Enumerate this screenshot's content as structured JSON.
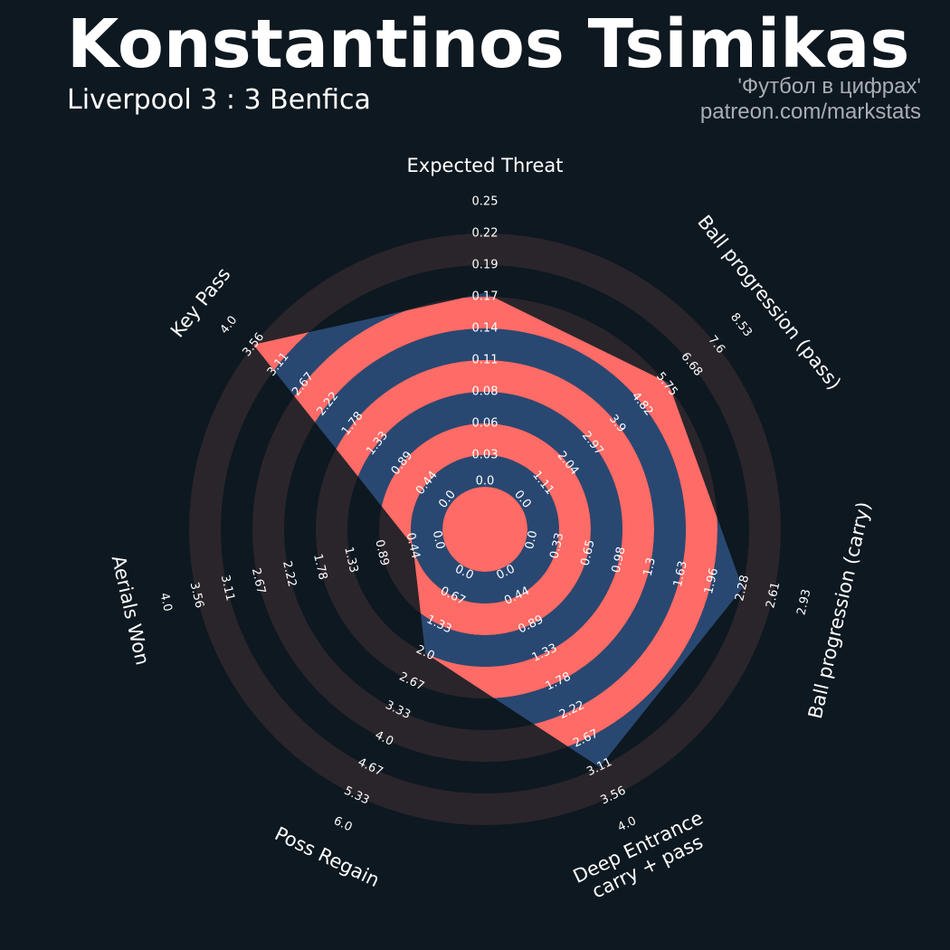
{
  "header": {
    "player": "Konstantinos Tsimikas",
    "match": "Liverpool 3 : 3 Benfica",
    "credit_line1": "'Футбол в цифрах'",
    "credit_line2": "patreon.com/markstats"
  },
  "colors": {
    "background": "#0e1820",
    "ring_dark": "#2a252b",
    "ring_red": "#ff6b66",
    "ring_blue": "#284872",
    "text": "#ffffff"
  },
  "chart_data": {
    "type": "radar",
    "title": "Konstantinos Tsimikas",
    "subtitle": "Liverpool 3 : 3 Benfica",
    "axes": [
      {
        "label": "Expected Threat",
        "min": 0.0,
        "max": 0.25,
        "value": 0.17,
        "ticks": [
          "0.0",
          "0.03",
          "0.06",
          "0.08",
          "0.11",
          "0.14",
          "0.17",
          "0.19",
          "0.22",
          "0.25"
        ]
      },
      {
        "label": "Ball progression (pass)",
        "min": 0.0,
        "max": 8.53,
        "value": 5.75,
        "ticks": [
          "0.0",
          "1.11",
          "2.04",
          "2.97",
          "3.9",
          "4.82",
          "5.75",
          "6.68",
          "7.6",
          "8.53"
        ]
      },
      {
        "label": "Ball progression (carry)",
        "min": 0.0,
        "max": 2.93,
        "value": 2.28,
        "ticks": [
          "0.0",
          "0.33",
          "0.65",
          "0.98",
          "1.3",
          "1.63",
          "1.96",
          "2.28",
          "2.61",
          "2.93"
        ]
      },
      {
        "label": "Deep Entrance\ncarry + pass",
        "min": 0.0,
        "max": 4.0,
        "value": 3.11,
        "ticks": [
          "0.0",
          "0.44",
          "0.89",
          "1.33",
          "1.78",
          "2.22",
          "2.67",
          "3.11",
          "3.56",
          "4.0"
        ]
      },
      {
        "label": "Poss Regain",
        "min": 0.0,
        "max": 6.0,
        "value": 2.0,
        "ticks": [
          "0.0",
          "0.67",
          "1.33",
          "2.0",
          "2.67",
          "3.33",
          "4.0",
          "4.67",
          "5.33",
          "6.0"
        ]
      },
      {
        "label": "Aerials Won",
        "min": 0.0,
        "max": 4.0,
        "value": 0.44,
        "ticks": [
          "0.0",
          "0.44",
          "0.89",
          "1.33",
          "1.78",
          "2.22",
          "2.67",
          "3.11",
          "3.56",
          "4.0"
        ]
      },
      {
        "label": "Key Pass",
        "min": 0.0,
        "max": 4.0,
        "value": 3.56,
        "ticks": [
          "0.0",
          "0.44",
          "0.89",
          "1.33",
          "1.78",
          "2.22",
          "2.67",
          "3.11",
          "3.56",
          "4.0"
        ]
      }
    ]
  }
}
